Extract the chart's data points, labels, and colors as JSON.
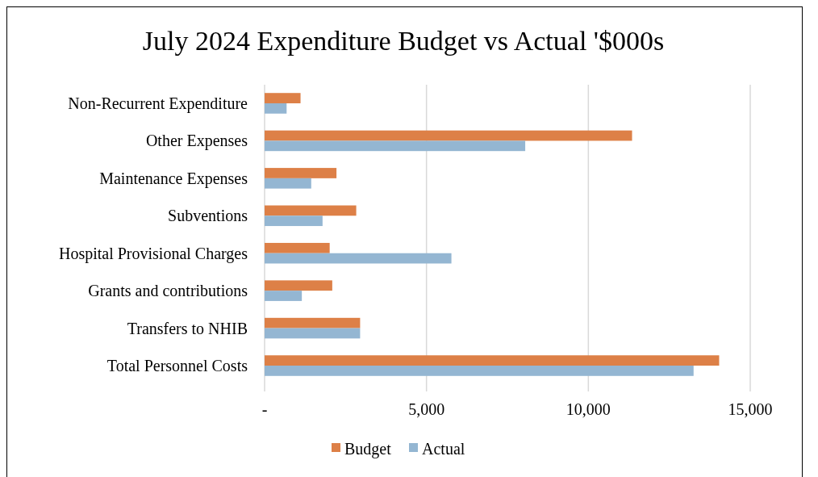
{
  "chart_data": {
    "type": "bar",
    "orientation": "horizontal",
    "title": "July 2024 Expenditure Budget vs Actual '$000s",
    "categories": [
      "Non-Recurrent Expenditure",
      "Other Expenses",
      "Maintenance Expenses",
      "Subventions",
      "Hospital Provisional Charges",
      "Grants and contributions",
      "Transfers to NHIB",
      "Total Personnel Costs"
    ],
    "series": [
      {
        "name": "Budget",
        "color": "#dd8047",
        "values": [
          1110,
          11350,
          2220,
          2830,
          2010,
          2090,
          2950,
          14040
        ]
      },
      {
        "name": "Actual",
        "color": "#94b6d2",
        "values": [
          680,
          8050,
          1440,
          1790,
          5770,
          1150,
          2950,
          13250
        ]
      }
    ],
    "xlim": [
      0,
      15000
    ],
    "xticks": [
      {
        "value": 0,
        "label": "-"
      },
      {
        "value": 5000,
        "label": "5,000"
      },
      {
        "value": 10000,
        "label": "10,000"
      },
      {
        "value": 15000,
        "label": "15,000"
      }
    ],
    "grid": "x",
    "legend": "bottom"
  }
}
